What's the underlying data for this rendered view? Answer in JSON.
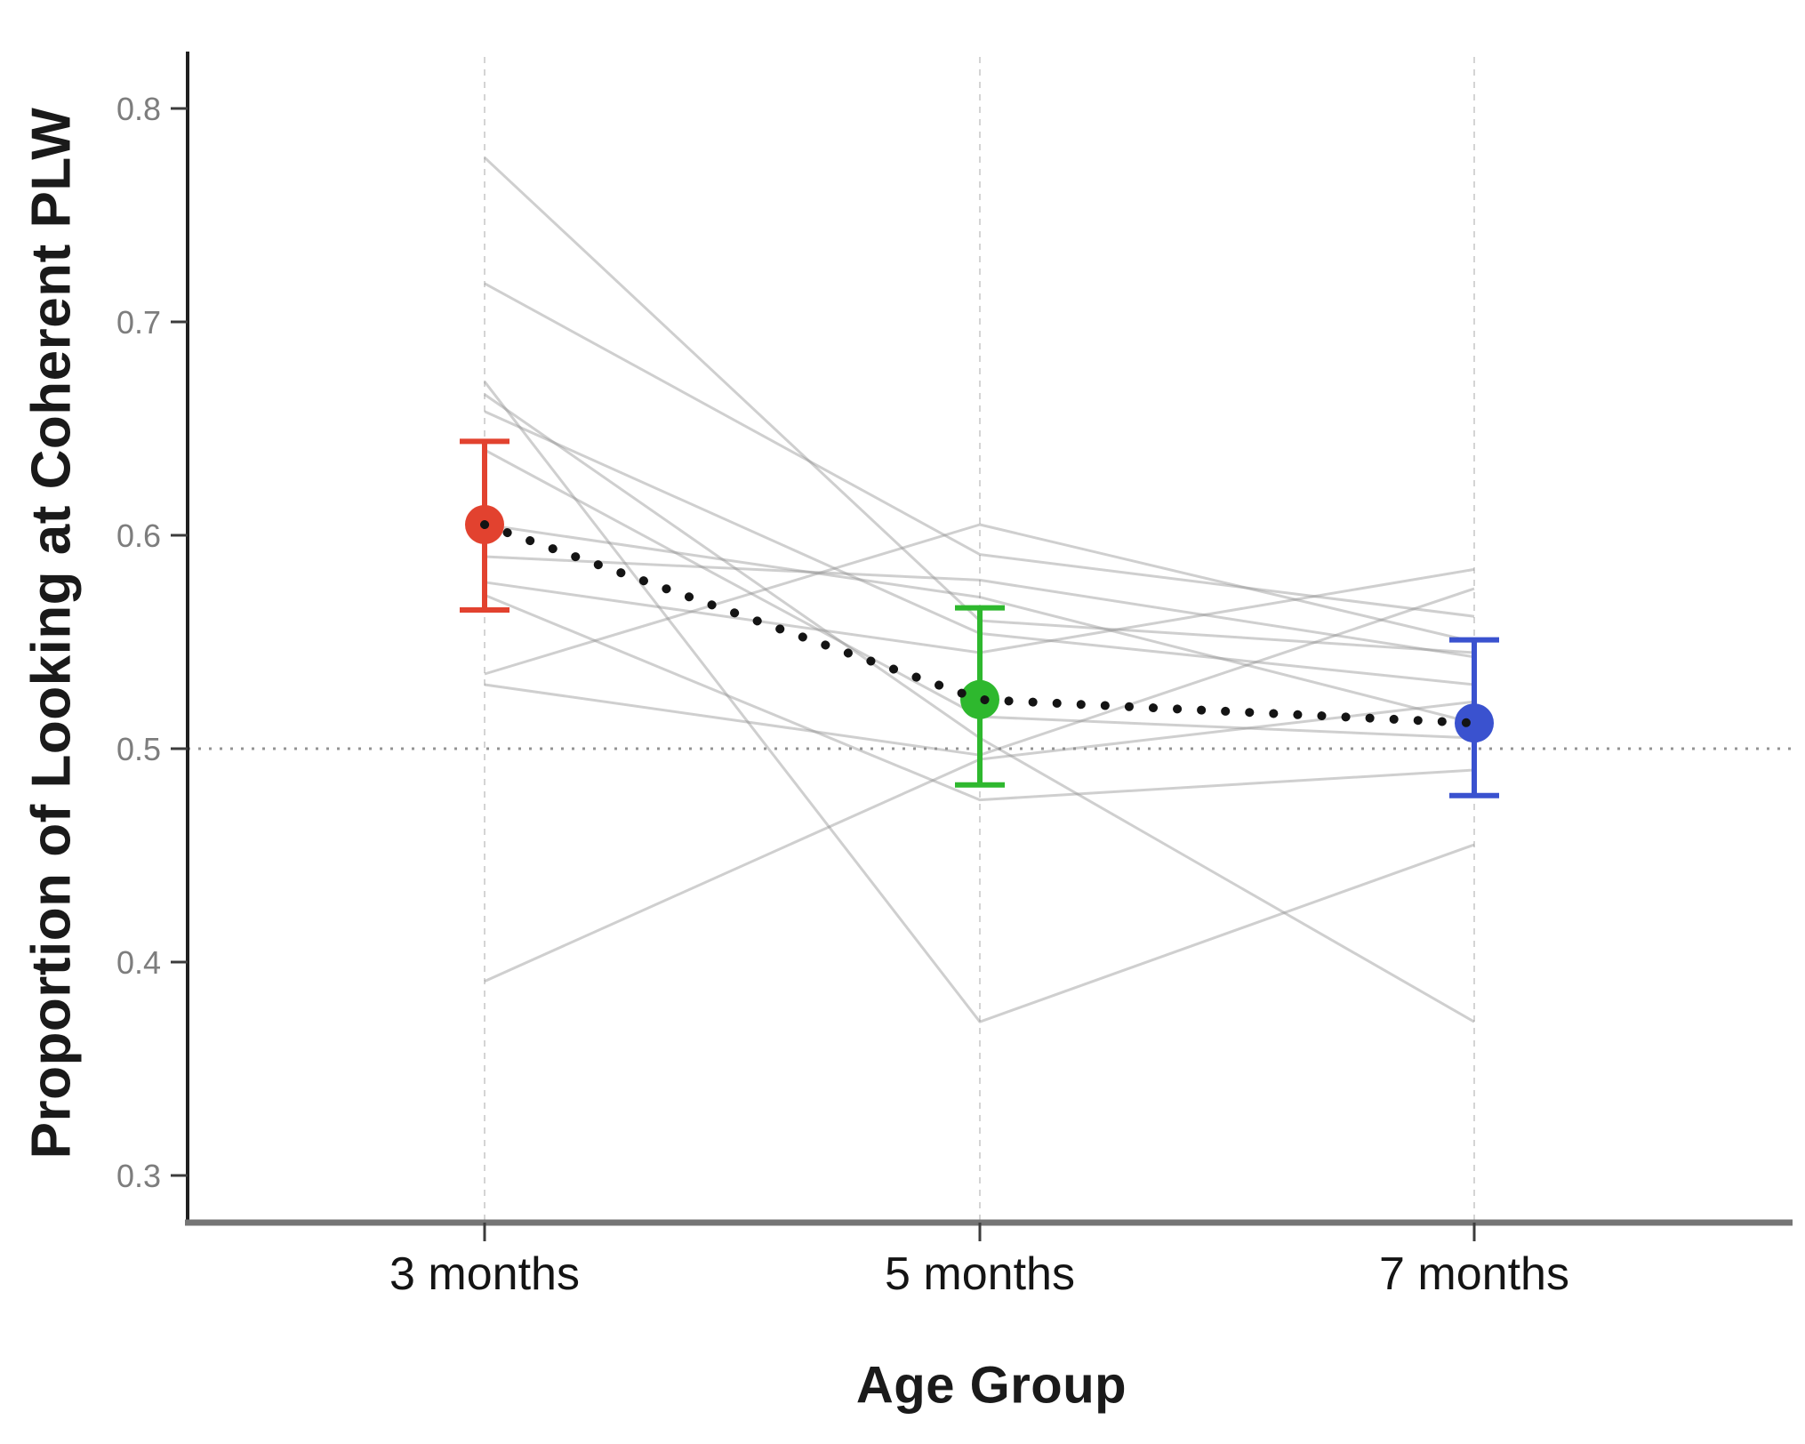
{
  "figure": {
    "y_axis_label": "Proportion of Looking at Coherent PLW",
    "x_axis_label": "Age Group"
  },
  "chart_data": {
    "type": "line",
    "title": "",
    "xlabel": "Age Group",
    "ylabel": "Proportion of Looking at Coherent PLW",
    "categories": [
      "3 months",
      "5 months",
      "7 months"
    ],
    "ylim": [
      0.27,
      0.84
    ],
    "y_ticks": [
      0.8,
      0.7,
      0.6,
      0.5,
      0.4,
      0.3
    ],
    "y_tick_labels": [
      "0.8",
      "0.7",
      "0.6",
      "0.5",
      "0.4",
      "0.3"
    ],
    "grid": "vertical-dashed-at-categories",
    "legend_position": "none",
    "chance_level": 0.5,
    "chance_line_style": "dotted",
    "group_means": [
      {
        "category": "3 months",
        "mean": 0.605,
        "ci_low": 0.565,
        "ci_high": 0.644,
        "color": "#e2422f"
      },
      {
        "category": "5 months",
        "mean": 0.523,
        "ci_low": 0.483,
        "ci_high": 0.566,
        "color": "#2eb82e"
      },
      {
        "category": "7 months",
        "mean": 0.512,
        "ci_low": 0.478,
        "ci_high": 0.551,
        "color": "#3a52cf"
      }
    ],
    "mean_connector": {
      "style": "dotted",
      "color": "#141414",
      "values": [
        0.605,
        0.523,
        0.512
      ]
    },
    "individual_line_color": "#8c8c8c",
    "individual_lines": [
      [
        0.777,
        0.56,
        0.545
      ],
      [
        0.718,
        0.591,
        0.562
      ],
      [
        0.672,
        0.372,
        0.455
      ],
      [
        0.666,
        0.505,
        0.372
      ],
      [
        0.658,
        0.554,
        0.53
      ],
      [
        0.64,
        0.515,
        0.505
      ],
      [
        0.605,
        0.571,
        0.512
      ],
      [
        0.59,
        0.579,
        0.543
      ],
      [
        0.578,
        0.545,
        0.584
      ],
      [
        0.572,
        0.476,
        0.49
      ],
      [
        0.535,
        0.605,
        0.55
      ],
      [
        0.53,
        0.497,
        0.575
      ],
      [
        0.391,
        0.495,
        0.522
      ]
    ]
  }
}
